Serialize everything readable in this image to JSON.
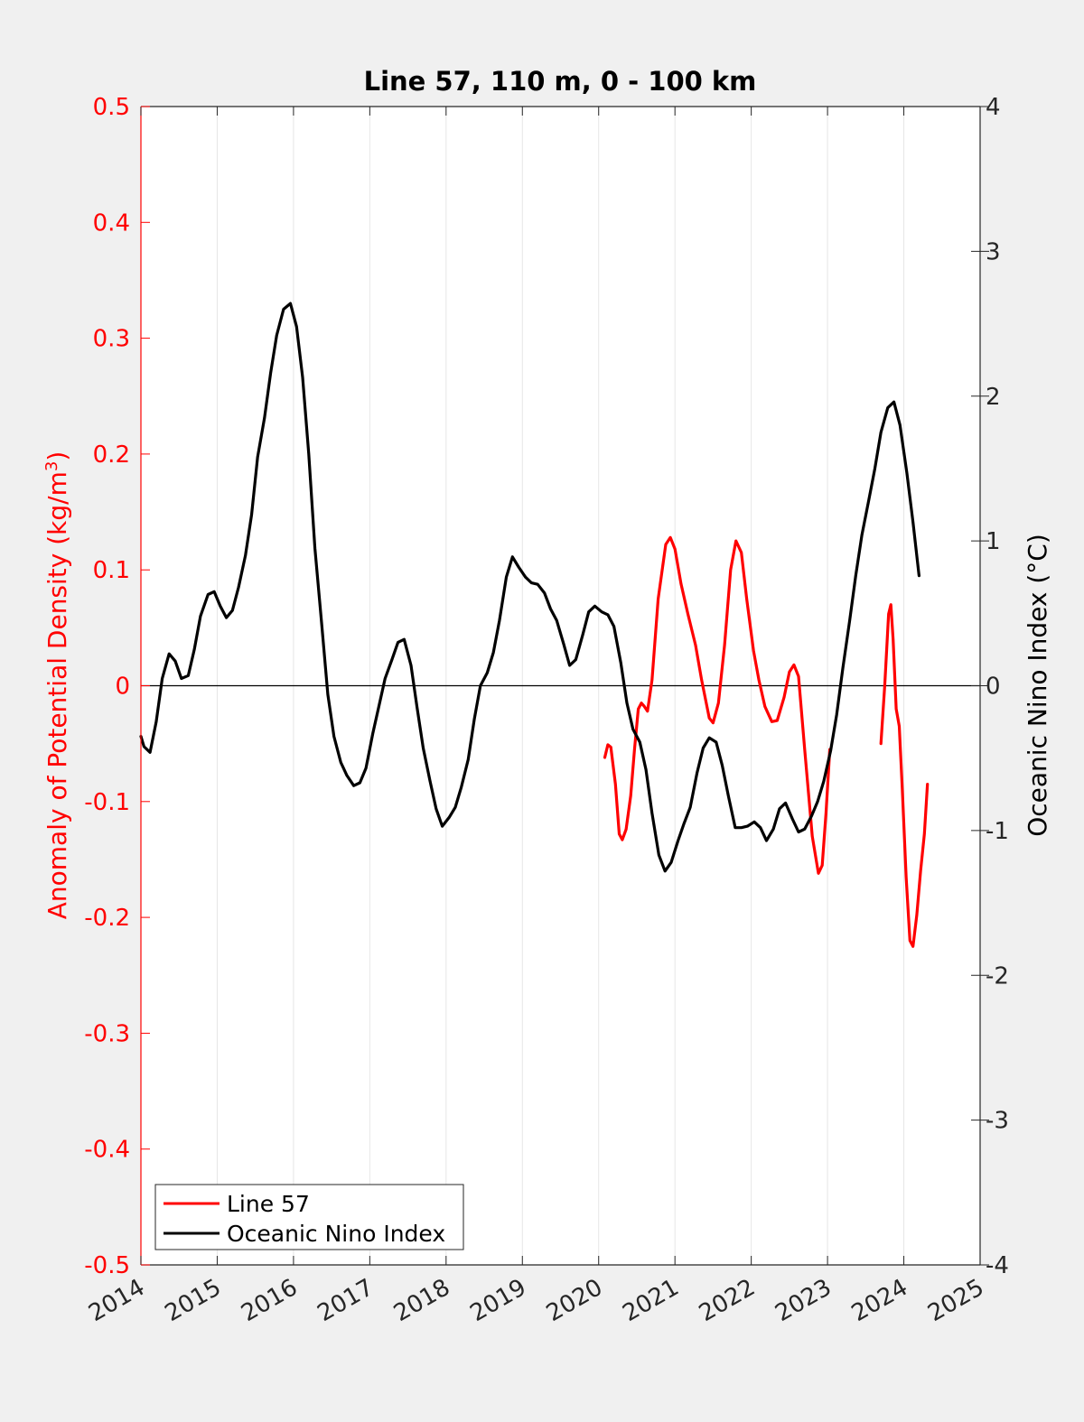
{
  "chart_data": {
    "type": "line",
    "title": "Line 57, 110 m, 0 - 100 km",
    "ylabel_left": "Anomaly of Potential Density (kg/m³)",
    "ylabel_left_main": "Anomaly of Potential Density (kg/m",
    "ylabel_left_sup": "3",
    "ylabel_left_close": ")",
    "ylabel_right": "Oceanic Nino Index (°C)",
    "xlim": [
      2014,
      2025
    ],
    "ylim_left": [
      -0.5,
      0.5
    ],
    "ylim_right": [
      -4,
      4
    ],
    "x_ticks": [
      "2014",
      "2015",
      "2016",
      "2017",
      "2018",
      "2019",
      "2020",
      "2021",
      "2022",
      "2023",
      "2024",
      "2025"
    ],
    "left_ticks": [
      "-0.5",
      "-0.4",
      "-0.3",
      "-0.2",
      "-0.1",
      "0",
      "0.1",
      "0.2",
      "0.3",
      "0.4",
      "0.5"
    ],
    "right_ticks": [
      "-4",
      "-3",
      "-2",
      "-1",
      "0",
      "1",
      "2",
      "3",
      "4"
    ],
    "grid": "vertical",
    "zero_line": true,
    "legend_position": "bottom-left",
    "colors": {
      "left_axis": "#ff0000",
      "line57": "#ff0000",
      "oni": "#000000",
      "background": "#f0f0f0",
      "plot_area": "#ffffff"
    },
    "series": [
      {
        "name": "Line 57",
        "axis": "left",
        "color": "#ff0000",
        "segments": [
          [
            [
              2020.08,
              -0.062
            ],
            [
              2020.12,
              -0.051
            ],
            [
              2020.16,
              -0.053
            ],
            [
              2020.22,
              -0.085
            ],
            [
              2020.27,
              -0.128
            ],
            [
              2020.31,
              -0.133
            ],
            [
              2020.36,
              -0.124
            ],
            [
              2020.42,
              -0.095
            ],
            [
              2020.47,
              -0.055
            ],
            [
              2020.52,
              -0.02
            ],
            [
              2020.56,
              -0.015
            ],
            [
              2020.6,
              -0.018
            ],
            [
              2020.64,
              -0.022
            ],
            [
              2020.7,
              0.005
            ],
            [
              2020.78,
              0.075
            ],
            [
              2020.88,
              0.122
            ],
            [
              2020.94,
              0.128
            ],
            [
              2021.0,
              0.118
            ],
            [
              2021.08,
              0.088
            ],
            [
              2021.17,
              0.062
            ],
            [
              2021.27,
              0.035
            ],
            [
              2021.35,
              0.005
            ],
            [
              2021.45,
              -0.028
            ],
            [
              2021.5,
              -0.032
            ],
            [
              2021.57,
              -0.015
            ],
            [
              2021.65,
              0.035
            ],
            [
              2021.73,
              0.1
            ],
            [
              2021.8,
              0.125
            ],
            [
              2021.87,
              0.115
            ],
            [
              2021.94,
              0.075
            ],
            [
              2022.03,
              0.03
            ],
            [
              2022.1,
              0.005
            ],
            [
              2022.18,
              -0.018
            ],
            [
              2022.27,
              -0.031
            ],
            [
              2022.34,
              -0.03
            ],
            [
              2022.43,
              -0.01
            ],
            [
              2022.5,
              0.012
            ],
            [
              2022.56,
              0.018
            ],
            [
              2022.62,
              0.008
            ],
            [
              2022.7,
              -0.055
            ],
            [
              2022.8,
              -0.13
            ],
            [
              2022.88,
              -0.162
            ],
            [
              2022.93,
              -0.155
            ],
            [
              2022.98,
              -0.11
            ],
            [
              2023.03,
              -0.055
            ]
          ],
          [
            [
              2023.7,
              -0.05
            ],
            [
              2023.75,
              0.0
            ],
            [
              2023.8,
              0.062
            ],
            [
              2023.83,
              0.07
            ],
            [
              2023.86,
              0.04
            ],
            [
              2023.9,
              -0.02
            ],
            [
              2023.94,
              -0.035
            ],
            [
              2023.98,
              -0.09
            ],
            [
              2024.03,
              -0.165
            ],
            [
              2024.08,
              -0.22
            ],
            [
              2024.12,
              -0.225
            ],
            [
              2024.17,
              -0.198
            ],
            [
              2024.22,
              -0.16
            ],
            [
              2024.27,
              -0.128
            ],
            [
              2024.31,
              -0.085
            ]
          ]
        ]
      },
      {
        "name": "Oceanic Nino Index",
        "axis": "right",
        "color": "#000000",
        "segments": [
          [
            [
              2014.0,
              -0.35
            ],
            [
              2014.04,
              -0.42
            ],
            [
              2014.12,
              -0.46
            ],
            [
              2014.2,
              -0.25
            ],
            [
              2014.28,
              0.05
            ],
            [
              2014.37,
              0.22
            ],
            [
              2014.45,
              0.17
            ],
            [
              2014.53,
              0.05
            ],
            [
              2014.62,
              0.07
            ],
            [
              2014.7,
              0.25
            ],
            [
              2014.78,
              0.48
            ],
            [
              2014.88,
              0.63
            ],
            [
              2014.96,
              0.65
            ],
            [
              2015.04,
              0.55
            ],
            [
              2015.12,
              0.47
            ],
            [
              2015.2,
              0.52
            ],
            [
              2015.28,
              0.68
            ],
            [
              2015.37,
              0.9
            ],
            [
              2015.45,
              1.18
            ],
            [
              2015.53,
              1.58
            ],
            [
              2015.62,
              1.85
            ],
            [
              2015.7,
              2.16
            ],
            [
              2015.78,
              2.42
            ],
            [
              2015.87,
              2.6
            ],
            [
              2015.96,
              2.64
            ],
            [
              2016.04,
              2.48
            ],
            [
              2016.12,
              2.13
            ],
            [
              2016.2,
              1.6
            ],
            [
              2016.28,
              0.95
            ],
            [
              2016.37,
              0.42
            ],
            [
              2016.45,
              -0.06
            ],
            [
              2016.53,
              -0.35
            ],
            [
              2016.62,
              -0.53
            ],
            [
              2016.7,
              -0.62
            ],
            [
              2016.79,
              -0.69
            ],
            [
              2016.87,
              -0.67
            ],
            [
              2016.95,
              -0.57
            ],
            [
              2017.04,
              -0.33
            ],
            [
              2017.12,
              -0.14
            ],
            [
              2017.2,
              0.05
            ],
            [
              2017.29,
              0.18
            ],
            [
              2017.37,
              0.3
            ],
            [
              2017.45,
              0.32
            ],
            [
              2017.54,
              0.14
            ],
            [
              2017.62,
              -0.15
            ],
            [
              2017.7,
              -0.43
            ],
            [
              2017.79,
              -0.66
            ],
            [
              2017.87,
              -0.85
            ],
            [
              2017.95,
              -0.97
            ],
            [
              2018.04,
              -0.91
            ],
            [
              2018.12,
              -0.84
            ],
            [
              2018.2,
              -0.7
            ],
            [
              2018.29,
              -0.51
            ],
            [
              2018.37,
              -0.23
            ],
            [
              2018.45,
              0.0
            ],
            [
              2018.54,
              0.09
            ],
            [
              2018.62,
              0.23
            ],
            [
              2018.7,
              0.45
            ],
            [
              2018.79,
              0.75
            ],
            [
              2018.87,
              0.89
            ],
            [
              2018.95,
              0.82
            ],
            [
              2019.04,
              0.75
            ],
            [
              2019.12,
              0.71
            ],
            [
              2019.2,
              0.7
            ],
            [
              2019.29,
              0.64
            ],
            [
              2019.37,
              0.53
            ],
            [
              2019.45,
              0.45
            ],
            [
              2019.54,
              0.29
            ],
            [
              2019.62,
              0.14
            ],
            [
              2019.7,
              0.18
            ],
            [
              2019.79,
              0.35
            ],
            [
              2019.87,
              0.51
            ],
            [
              2019.95,
              0.55
            ],
            [
              2020.04,
              0.51
            ],
            [
              2020.12,
              0.49
            ],
            [
              2020.2,
              0.41
            ],
            [
              2020.29,
              0.16
            ],
            [
              2020.37,
              -0.12
            ],
            [
              2020.45,
              -0.3
            ],
            [
              2020.54,
              -0.39
            ],
            [
              2020.62,
              -0.58
            ],
            [
              2020.7,
              -0.88
            ],
            [
              2020.79,
              -1.17
            ],
            [
              2020.87,
              -1.28
            ],
            [
              2020.95,
              -1.22
            ],
            [
              2021.04,
              -1.07
            ],
            [
              2021.12,
              -0.95
            ],
            [
              2021.2,
              -0.84
            ],
            [
              2021.29,
              -0.6
            ],
            [
              2021.37,
              -0.43
            ],
            [
              2021.45,
              -0.36
            ],
            [
              2021.54,
              -0.39
            ],
            [
              2021.62,
              -0.55
            ],
            [
              2021.7,
              -0.76
            ],
            [
              2021.79,
              -0.98
            ],
            [
              2021.87,
              -0.98
            ],
            [
              2021.95,
              -0.97
            ],
            [
              2022.04,
              -0.94
            ],
            [
              2022.12,
              -0.98
            ],
            [
              2022.2,
              -1.07
            ],
            [
              2022.29,
              -0.99
            ],
            [
              2022.37,
              -0.85
            ],
            [
              2022.45,
              -0.81
            ],
            [
              2022.54,
              -0.92
            ],
            [
              2022.62,
              -1.01
            ],
            [
              2022.7,
              -0.99
            ],
            [
              2022.79,
              -0.9
            ],
            [
              2022.87,
              -0.8
            ],
            [
              2022.95,
              -0.66
            ],
            [
              2023.04,
              -0.45
            ],
            [
              2023.12,
              -0.2
            ],
            [
              2023.2,
              0.12
            ],
            [
              2023.29,
              0.45
            ],
            [
              2023.37,
              0.76
            ],
            [
              2023.45,
              1.04
            ],
            [
              2023.54,
              1.28
            ],
            [
              2023.62,
              1.5
            ],
            [
              2023.7,
              1.75
            ],
            [
              2023.79,
              1.92
            ],
            [
              2023.87,
              1.96
            ],
            [
              2023.95,
              1.8
            ],
            [
              2024.04,
              1.47
            ],
            [
              2024.12,
              1.13
            ],
            [
              2024.2,
              0.76
            ]
          ]
        ]
      }
    ]
  }
}
